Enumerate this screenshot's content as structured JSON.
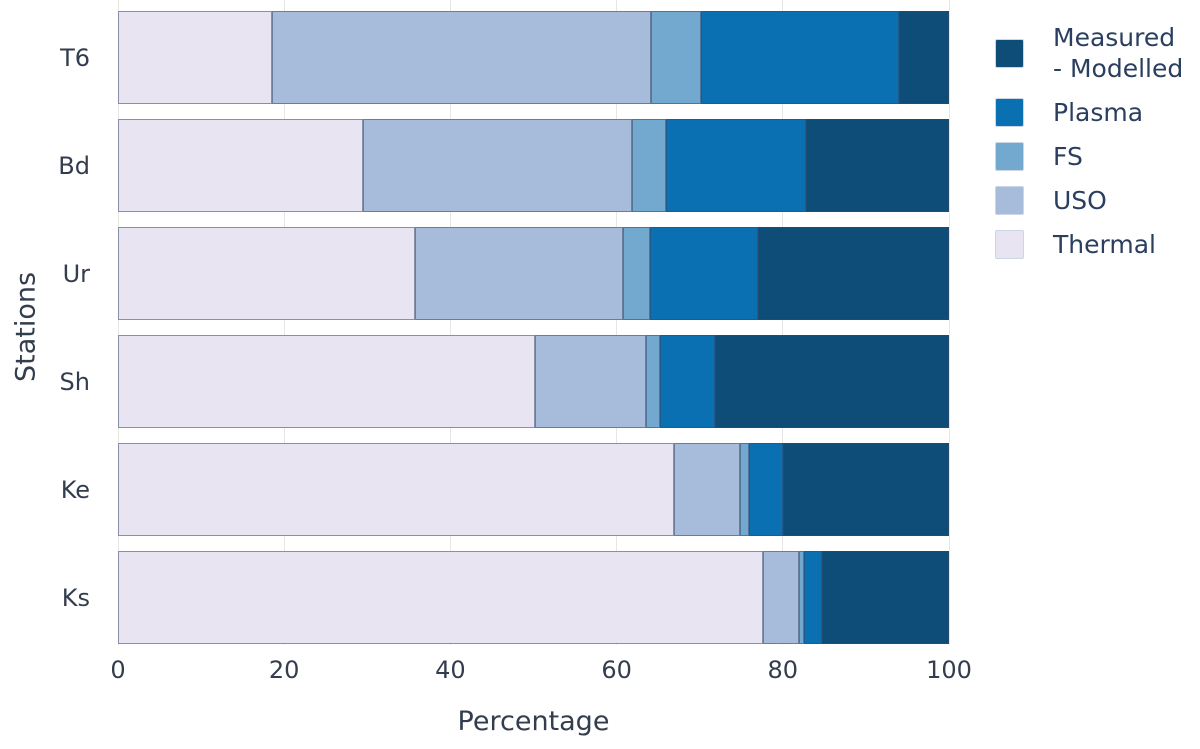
{
  "colors": {
    "background": "#ffffff",
    "grid": "#e6e6e6",
    "segment_border": "rgba(56,72,110,0.55)",
    "axis_text": "#333d4d",
    "legend_text": "#2a3f5f",
    "legend_swatch_border": "#ccd5e6"
  },
  "chart_data": {
    "type": "bar",
    "orientation": "horizontal",
    "stacked": true,
    "title": "",
    "xlabel": "Percentage",
    "ylabel": "Stations",
    "xlim": [
      0,
      100
    ],
    "xticks": [
      0,
      20,
      40,
      60,
      80,
      100
    ],
    "grid": true,
    "legend_position": "top-right",
    "categories": [
      "T6",
      "Bd",
      "Ur",
      "Sh",
      "Ke",
      "Ks"
    ],
    "series": [
      {
        "name": "Thermal",
        "color": "#e8e4f1",
        "values": [
          18.5,
          29.5,
          35.8,
          50.2,
          66.9,
          77.6
        ]
      },
      {
        "name": "USO",
        "color": "#a6bcda",
        "values": [
          45.6,
          32.4,
          25.0,
          13.3,
          8.0,
          4.3
        ]
      },
      {
        "name": "FS",
        "color": "#74a9cf",
        "values": [
          6.1,
          4.1,
          3.2,
          1.7,
          1.0,
          0.7
        ]
      },
      {
        "name": "Plasma",
        "color": "#0a70b2",
        "values": [
          23.8,
          16.8,
          13.0,
          6.6,
          4.1,
          2.1
        ]
      },
      {
        "name": "Measured - Modelled",
        "color": "#0d4d78",
        "values": [
          6.0,
          17.2,
          23.0,
          28.2,
          20.0,
          15.3
        ]
      }
    ],
    "legend_entries": [
      {
        "series": "Measured - Modelled",
        "label": "Measured\n- Modelled",
        "color": "#0d4d78"
      },
      {
        "series": "Plasma",
        "label": "Plasma",
        "color": "#0a70b2"
      },
      {
        "series": "FS",
        "label": "FS",
        "color": "#74a9cf"
      },
      {
        "series": "USO",
        "label": "USO",
        "color": "#a6bcda"
      },
      {
        "series": "Thermal",
        "label": "Thermal",
        "color": "#e8e4f1"
      }
    ]
  }
}
